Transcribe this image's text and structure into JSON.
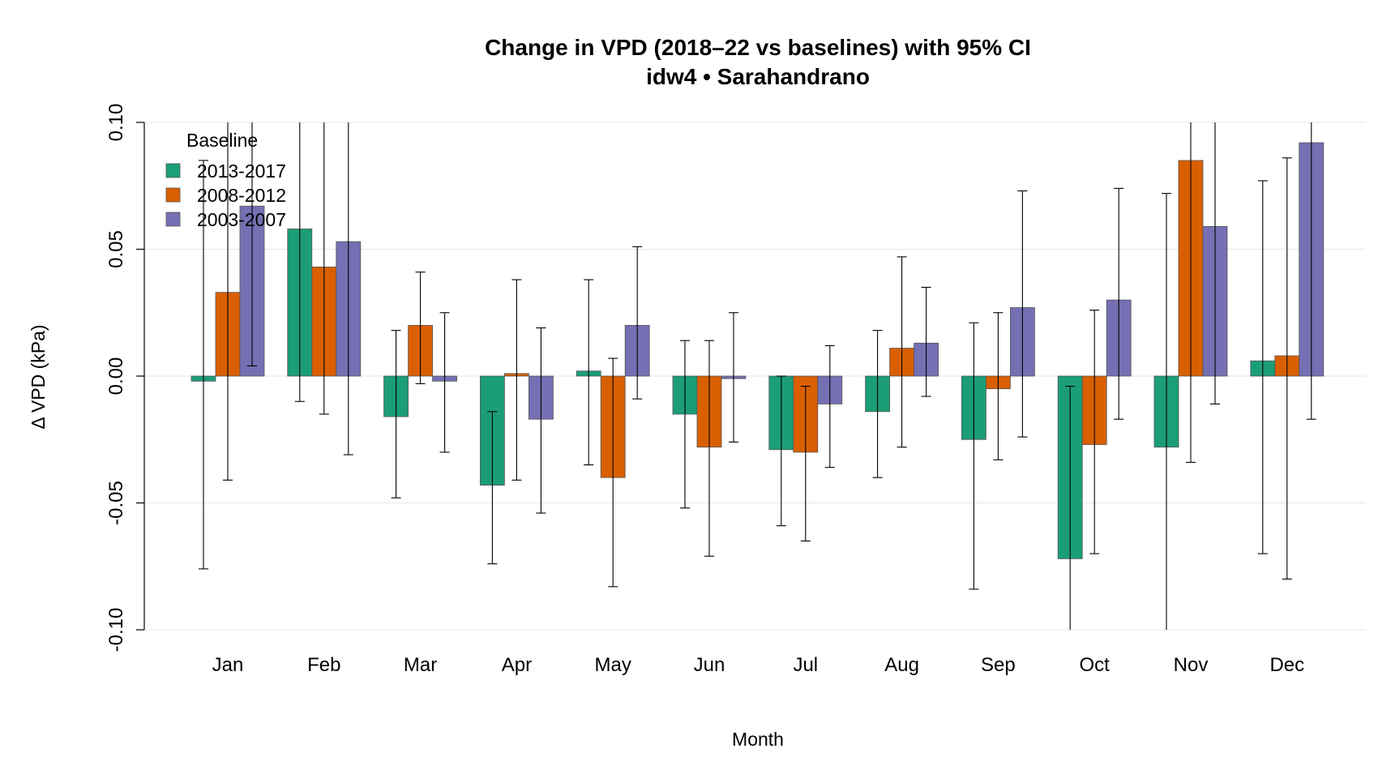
{
  "chart_data": {
    "type": "bar",
    "title": "Change in VPD (2018–22 vs baselines) with 95% CI",
    "subtitle": "idw4 • Sarahandrano",
    "xlabel": "Month",
    "ylabel": "Δ VPD (kPa)",
    "ylim": [
      -0.1,
      0.1
    ],
    "yticks": [
      "-0.10",
      "-0.05",
      "0.00",
      "0.05",
      "0.10"
    ],
    "ytick_values": [
      -0.1,
      -0.05,
      0.0,
      0.05,
      0.1
    ],
    "grid": true,
    "legend_title": "Baseline",
    "legend_position": "top-left",
    "categories": [
      "Jan",
      "Feb",
      "Mar",
      "Apr",
      "May",
      "Jun",
      "Jul",
      "Aug",
      "Sep",
      "Oct",
      "Nov",
      "Dec"
    ],
    "series": [
      {
        "name": "2013-2017",
        "color": "#1b9e77",
        "values": [
          -0.002,
          0.058,
          -0.016,
          -0.043,
          0.002,
          -0.015,
          -0.029,
          -0.014,
          -0.025,
          -0.072,
          -0.028,
          0.006
        ],
        "ci_low": [
          -0.076,
          -0.01,
          -0.048,
          -0.074,
          -0.035,
          -0.052,
          -0.059,
          -0.04,
          -0.084,
          -0.104,
          -0.13,
          -0.07
        ],
        "ci_high": [
          0.085,
          0.12,
          0.018,
          -0.014,
          0.038,
          0.014,
          0.0,
          0.018,
          0.021,
          -0.004,
          0.072,
          0.077
        ]
      },
      {
        "name": "2008-2012",
        "color": "#d95f02",
        "values": [
          0.033,
          0.043,
          0.02,
          0.001,
          -0.04,
          -0.028,
          -0.03,
          0.011,
          -0.005,
          -0.027,
          0.085,
          0.008
        ],
        "ci_low": [
          -0.041,
          -0.015,
          -0.003,
          -0.041,
          -0.083,
          -0.071,
          -0.065,
          -0.028,
          -0.033,
          -0.07,
          -0.034,
          -0.08
        ],
        "ci_high": [
          0.12,
          0.12,
          0.041,
          0.038,
          0.007,
          0.014,
          -0.004,
          0.047,
          0.025,
          0.026,
          0.12,
          0.086
        ]
      },
      {
        "name": "2003-2007",
        "color": "#7570b3",
        "values": [
          0.067,
          0.053,
          -0.002,
          -0.017,
          0.02,
          -0.001,
          -0.011,
          0.013,
          0.027,
          0.03,
          0.059,
          0.092
        ],
        "ci_low": [
          0.004,
          -0.031,
          -0.03,
          -0.054,
          -0.009,
          -0.026,
          -0.036,
          -0.008,
          -0.024,
          -0.017,
          -0.011,
          -0.017
        ],
        "ci_high": [
          0.12,
          0.12,
          0.025,
          0.019,
          0.051,
          0.025,
          0.012,
          0.035,
          0.073,
          0.074,
          0.12,
          0.12
        ]
      }
    ]
  }
}
